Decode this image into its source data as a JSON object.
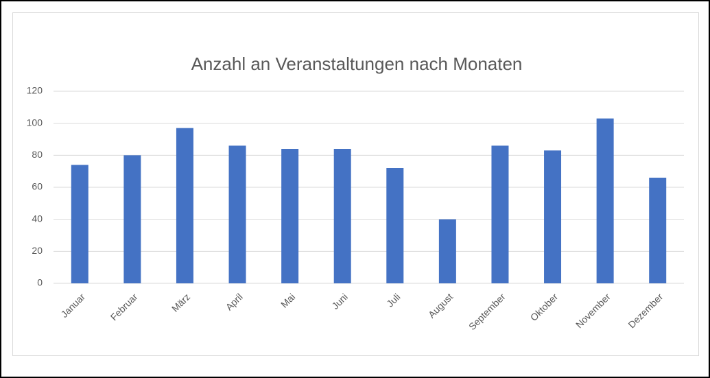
{
  "chart_data": {
    "type": "bar",
    "title": "Anzahl an Veranstaltungen nach Monaten",
    "categories": [
      "Januar",
      "Februar",
      "März",
      "April",
      "Mai",
      "Juni",
      "Juli",
      "August",
      "September",
      "Oktober",
      "November",
      "Dezember"
    ],
    "values": [
      74,
      80,
      97,
      86,
      84,
      84,
      72,
      40,
      86,
      83,
      103,
      66
    ],
    "color": "#4472c4",
    "ylim": [
      0,
      120
    ],
    "yticks": [
      0,
      20,
      40,
      60,
      80,
      100,
      120
    ],
    "grid": true
  }
}
